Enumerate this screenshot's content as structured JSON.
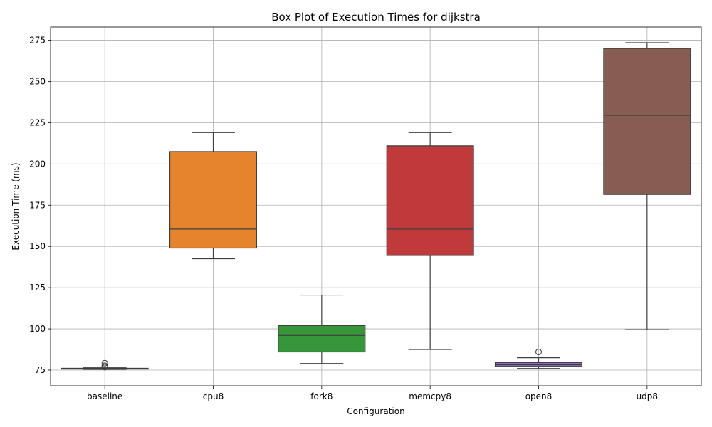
{
  "chart_data": {
    "type": "box",
    "title": "Box Plot of Execution Times for dijkstra",
    "xlabel": "Configuration",
    "ylabel": "Execution Time (ms)",
    "ylim": [
      65.5,
      283
    ],
    "yticks": [
      75,
      100,
      125,
      150,
      175,
      200,
      225,
      250,
      275
    ],
    "grid": true,
    "categories": [
      "baseline",
      "cpu8",
      "fork8",
      "memcpy8",
      "open8",
      "udp8"
    ],
    "colors": [
      "#1f77b4",
      "#e6832d",
      "#38963a",
      "#c13a3b",
      "#9168bd",
      "#875c53"
    ],
    "boxes": [
      {
        "category": "baseline",
        "whisker_low": 75.4,
        "q1": 75.6,
        "median": 75.9,
        "q3": 76.1,
        "whisker_high": 76.4,
        "outliers": [
          79.2,
          77.6,
          76.8
        ]
      },
      {
        "category": "cpu8",
        "whisker_low": 142.5,
        "q1": 149.0,
        "median": 160.5,
        "q3": 207.5,
        "whisker_high": 219.0,
        "outliers": []
      },
      {
        "category": "fork8",
        "whisker_low": 79.0,
        "q1": 86.0,
        "median": 96.0,
        "q3": 102.0,
        "whisker_high": 120.5,
        "outliers": []
      },
      {
        "category": "memcpy8",
        "whisker_low": 87.5,
        "q1": 144.5,
        "median": 160.5,
        "q3": 211.0,
        "whisker_high": 219.0,
        "outliers": []
      },
      {
        "category": "open8",
        "whisker_low": 76.0,
        "q1": 77.2,
        "median": 78.2,
        "q3": 79.6,
        "whisker_high": 82.5,
        "outliers": [
          86.0
        ]
      },
      {
        "category": "udp8",
        "whisker_low": 99.5,
        "q1": 181.5,
        "median": 229.5,
        "q3": 270.0,
        "whisker_high": 273.5,
        "outliers": []
      }
    ]
  }
}
